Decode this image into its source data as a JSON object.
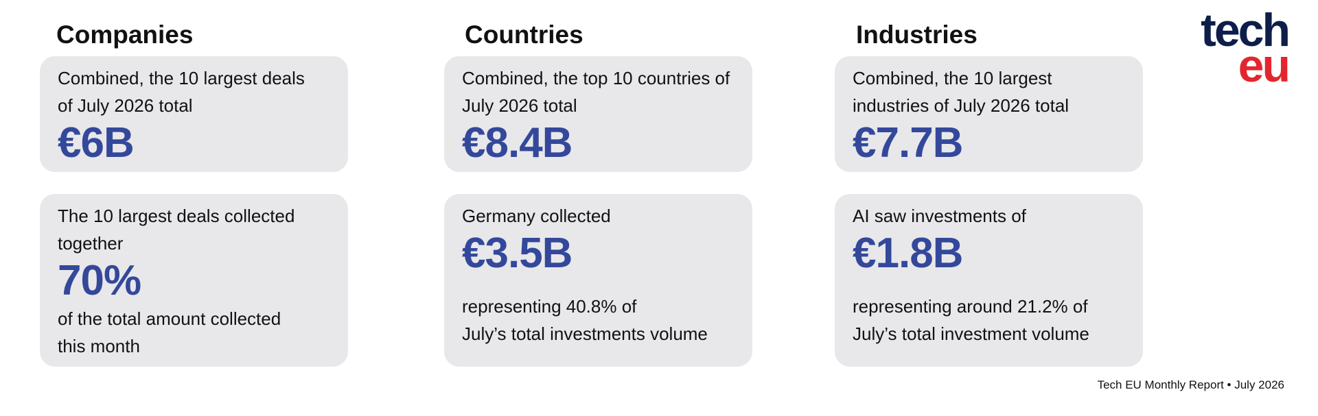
{
  "logo": {
    "top": "tech",
    "bottom": "eu"
  },
  "sections": [
    {
      "heading": "Companies",
      "cards": [
        {
          "lines": [
            "Combined, the 10 largest deals",
            "of July 2026 total"
          ],
          "value": "€6B"
        },
        {
          "lines": [
            "The 10 largest deals collected",
            "together"
          ],
          "value": "70%",
          "note": [
            "of the total amount collected",
            "this month"
          ]
        }
      ]
    },
    {
      "heading": "Countries",
      "cards": [
        {
          "lines": [
            "Combined, the top 10 countries of",
            "July 2026 total"
          ],
          "value": "€8.4B"
        },
        {
          "lines": [
            "Germany collected"
          ],
          "value": "€3.5B",
          "note": [
            "representing 40.8% of",
            "July’s total investments volume"
          ]
        }
      ]
    },
    {
      "heading": "Industries",
      "cards": [
        {
          "lines": [
            "Combined, the 10 largest",
            "industries of July 2026 total"
          ],
          "value": "€7.7B"
        },
        {
          "lines": [
            "AI saw investments of"
          ],
          "value": "€1.8B",
          "note": [
            "representing around 21.2% of",
            "July’s total investment volume"
          ]
        }
      ]
    }
  ],
  "footer": "Tech EU Monthly Report • July 2026"
}
